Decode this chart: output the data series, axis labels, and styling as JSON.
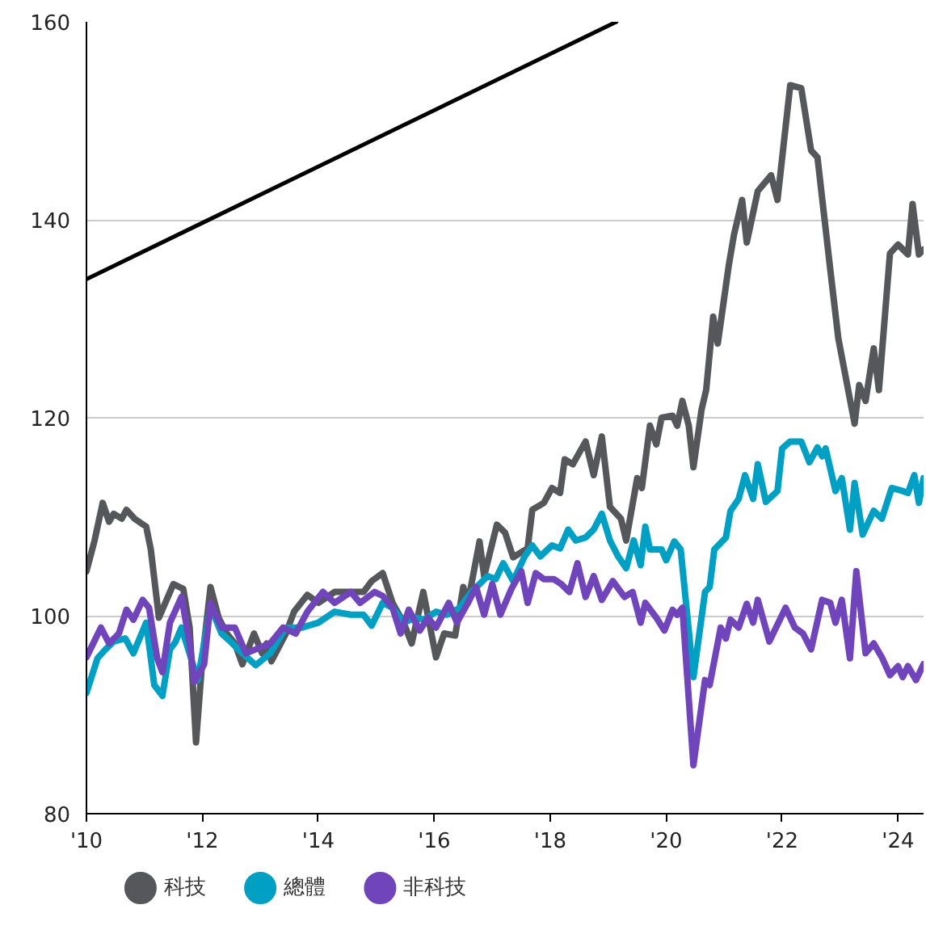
{
  "chart_data": {
    "type": "line",
    "xlim": [
      2010,
      2024.44
    ],
    "ylim": [
      80,
      160
    ],
    "xticks": [
      {
        "value": 2010,
        "label": "'10"
      },
      {
        "value": 2012,
        "label": "'12"
      },
      {
        "value": 2014,
        "label": "'14"
      },
      {
        "value": 2016,
        "label": "'16"
      },
      {
        "value": 2018,
        "label": "'18"
      },
      {
        "value": 2020,
        "label": "'20"
      },
      {
        "value": 2022,
        "label": "'22"
      },
      {
        "value": 2024,
        "label": "'24"
      }
    ],
    "yticks": [
      80,
      100,
      120,
      140,
      160
    ],
    "grid": "y",
    "legend": "bottom",
    "marker": "none",
    "line_style": "solid",
    "series": [
      {
        "name": "科技",
        "color": "#55575a",
        "x": [
          2010.0,
          2010.14,
          2010.28,
          2010.39,
          2010.47,
          2010.61,
          2010.69,
          2010.83,
          2011.03,
          2011.11,
          2011.25,
          2011.36,
          2011.5,
          2011.67,
          2011.78,
          2011.89,
          2012.0,
          2012.14,
          2012.28,
          2012.42,
          2012.56,
          2012.69,
          2012.89,
          2013.03,
          2013.11,
          2013.19,
          2013.44,
          2013.58,
          2013.81,
          2014.0,
          2014.28,
          2014.56,
          2014.78,
          2014.92,
          2015.11,
          2015.28,
          2015.47,
          2015.61,
          2015.81,
          2016.03,
          2016.17,
          2016.36,
          2016.5,
          2016.58,
          2016.78,
          2016.86,
          2017.08,
          2017.22,
          2017.36,
          2017.61,
          2017.69,
          2017.89,
          2018.03,
          2018.17,
          2018.25,
          2018.39,
          2018.61,
          2018.75,
          2018.89,
          2019.03,
          2019.22,
          2019.31,
          2019.5,
          2019.58,
          2019.72,
          2019.83,
          2019.92,
          2020.11,
          2020.19,
          2020.28,
          2020.39,
          2020.47,
          2020.61,
          2020.69,
          2020.81,
          2020.89,
          2021.08,
          2021.17,
          2021.31,
          2021.39,
          2021.58,
          2021.81,
          2021.92,
          2022.14,
          2022.33,
          2022.5,
          2022.61,
          2022.83,
          2022.97,
          2023.25,
          2023.33,
          2023.44,
          2023.58,
          2023.67,
          2023.86,
          2024.0,
          2024.17,
          2024.25,
          2024.36,
          2024.44
        ],
        "values": [
          104.5,
          107.6,
          111.4,
          109.5,
          110.3,
          109.8,
          110.7,
          109.8,
          109,
          106.7,
          99.8,
          101.3,
          103.2,
          102.7,
          98.8,
          87.2,
          95.7,
          102.9,
          99.8,
          98.2,
          97.2,
          95.1,
          98.2,
          96.2,
          97.2,
          95.4,
          98.2,
          100.4,
          102.1,
          101.3,
          102.4,
          102.4,
          102.4,
          103.5,
          104.3,
          101.3,
          99.3,
          97.2,
          102.4,
          95.8,
          98.2,
          98,
          102.9,
          101.3,
          107.5,
          104,
          109.2,
          108.4,
          105.9,
          106.8,
          110.7,
          111.4,
          112.9,
          112.4,
          115.8,
          115.3,
          117.6,
          114.2,
          118.1,
          111,
          109.8,
          107.6,
          113.9,
          112.9,
          119.2,
          117.3,
          120,
          120.2,
          119.2,
          121.7,
          119.2,
          115,
          120.8,
          122.8,
          130.2,
          127.5,
          135.4,
          138.5,
          142,
          137.7,
          142.9,
          144.5,
          142,
          153.6,
          153.3,
          147,
          146.3,
          135,
          128,
          119.4,
          123.3,
          121.7,
          127,
          122.8,
          136.6,
          137.5,
          136.5,
          141.6,
          136.5,
          137
        ]
      },
      {
        "name": "總體",
        "color": "#00a0c4",
        "x": [
          2010.0,
          2010.19,
          2010.33,
          2010.47,
          2010.67,
          2010.81,
          2011.03,
          2011.17,
          2011.31,
          2011.44,
          2011.53,
          2011.64,
          2011.92,
          2012.14,
          2012.33,
          2012.5,
          2012.69,
          2012.92,
          2013.17,
          2013.44,
          2013.72,
          2014.0,
          2014.28,
          2014.56,
          2014.78,
          2014.92,
          2015.11,
          2015.28,
          2015.47,
          2015.67,
          2015.83,
          2016.03,
          2016.22,
          2016.44,
          2016.64,
          2016.78,
          2016.92,
          2017.06,
          2017.19,
          2017.36,
          2017.56,
          2017.69,
          2017.83,
          2018.03,
          2018.17,
          2018.31,
          2018.44,
          2018.61,
          2018.75,
          2018.89,
          2019.03,
          2019.17,
          2019.31,
          2019.44,
          2019.56,
          2019.64,
          2019.72,
          2019.92,
          2020.0,
          2020.14,
          2020.25,
          2020.47,
          2020.67,
          2020.75,
          2020.83,
          2021.03,
          2021.11,
          2021.25,
          2021.36,
          2021.5,
          2021.58,
          2021.72,
          2021.92,
          2022.0,
          2022.14,
          2022.33,
          2022.47,
          2022.61,
          2022.69,
          2022.75,
          2022.92,
          2023.03,
          2023.17,
          2023.25,
          2023.39,
          2023.58,
          2023.72,
          2023.89,
          2024.08,
          2024.17,
          2024.28,
          2024.36,
          2024.44
        ],
        "values": [
          92.2,
          95.7,
          96.6,
          97.4,
          97.7,
          96.2,
          99.3,
          93,
          91.9,
          96.6,
          97.3,
          98.8,
          93.5,
          100.9,
          98.2,
          97.3,
          96.2,
          95,
          96.2,
          98.8,
          98.8,
          99.3,
          100.4,
          100.1,
          100.1,
          99,
          101.3,
          100.8,
          99.3,
          99.8,
          99.6,
          100.4,
          100.1,
          100.8,
          102.4,
          103.2,
          104,
          103.7,
          105.3,
          103.5,
          106,
          107.1,
          106,
          107.1,
          106.8,
          108.7,
          107.6,
          107.9,
          108.7,
          110.3,
          107.6,
          106,
          104.8,
          107.6,
          105.1,
          109,
          106.7,
          106.7,
          105.6,
          107.5,
          106.7,
          93.8,
          102.4,
          102.9,
          106.7,
          107.9,
          110.6,
          111.8,
          114.2,
          111.8,
          115.3,
          111.5,
          112.6,
          116.9,
          117.6,
          117.6,
          115.5,
          117,
          116.1,
          116.9,
          112.6,
          113.9,
          108.7,
          113.4,
          108.2,
          110.6,
          109.8,
          112.9,
          112.6,
          112.4,
          114.2,
          111.4,
          113.9
        ]
      },
      {
        "name": "非科技",
        "color": "#7044bb",
        "x": [
          2010.0,
          2010.25,
          2010.39,
          2010.56,
          2010.69,
          2010.81,
          2010.97,
          2011.08,
          2011.22,
          2011.31,
          2011.44,
          2011.64,
          2011.78,
          2011.86,
          2012.03,
          2012.14,
          2012.33,
          2012.56,
          2012.75,
          2012.92,
          2013.17,
          2013.39,
          2013.61,
          2013.81,
          2014.08,
          2014.28,
          2014.56,
          2014.72,
          2014.97,
          2015.11,
          2015.28,
          2015.42,
          2015.56,
          2015.75,
          2015.89,
          2016.03,
          2016.25,
          2016.39,
          2016.58,
          2016.72,
          2016.86,
          2017.0,
          2017.14,
          2017.33,
          2017.5,
          2017.61,
          2017.75,
          2017.89,
          2018.06,
          2018.19,
          2018.33,
          2018.47,
          2018.61,
          2018.75,
          2018.89,
          2019.08,
          2019.28,
          2019.42,
          2019.56,
          2019.64,
          2019.83,
          2019.97,
          2020.11,
          2020.19,
          2020.28,
          2020.47,
          2020.67,
          2020.75,
          2020.94,
          2021.03,
          2021.11,
          2021.25,
          2021.39,
          2021.5,
          2021.58,
          2021.78,
          2022.06,
          2022.22,
          2022.36,
          2022.5,
          2022.69,
          2022.83,
          2022.92,
          2023.03,
          2023.17,
          2023.28,
          2023.44,
          2023.58,
          2023.72,
          2023.86,
          2024.0,
          2024.08,
          2024.17,
          2024.31,
          2024.44
        ],
        "values": [
          95.8,
          98.8,
          97.2,
          98.2,
          100.6,
          99.6,
          101.6,
          100.8,
          95.7,
          94.3,
          99.3,
          101.9,
          97.2,
          93.3,
          95.1,
          101.3,
          98.8,
          98.8,
          96.2,
          96.6,
          97.2,
          98.8,
          98.2,
          100.4,
          102.4,
          101.3,
          102.4,
          101.3,
          102.4,
          102,
          100.8,
          98.2,
          100.6,
          98.5,
          99.8,
          98.8,
          101.3,
          99.3,
          101.3,
          102.9,
          100.1,
          103.2,
          100.1,
          102.7,
          104.5,
          101.3,
          104.3,
          103.7,
          103.7,
          103.2,
          102.4,
          105.3,
          101.9,
          104,
          101.6,
          103.5,
          101.9,
          102.4,
          99.3,
          101.3,
          99.8,
          98.5,
          100.6,
          100.1,
          100.8,
          84.9,
          93.5,
          93,
          98.8,
          97.7,
          99.6,
          98.8,
          101.2,
          99.3,
          101.6,
          97.4,
          100.8,
          98.8,
          98.2,
          96.6,
          101.6,
          101.3,
          99.3,
          101.6,
          95.7,
          104.5,
          96.2,
          97.2,
          95.8,
          94,
          94.9,
          93.8,
          94.9,
          93.5,
          95.1
        ]
      },
      {
        "type": "line",
        "color": "#000000",
        "x": [
          2010,
          2019.14
        ],
        "values": [
          134,
          160
        ]
      }
    ]
  }
}
